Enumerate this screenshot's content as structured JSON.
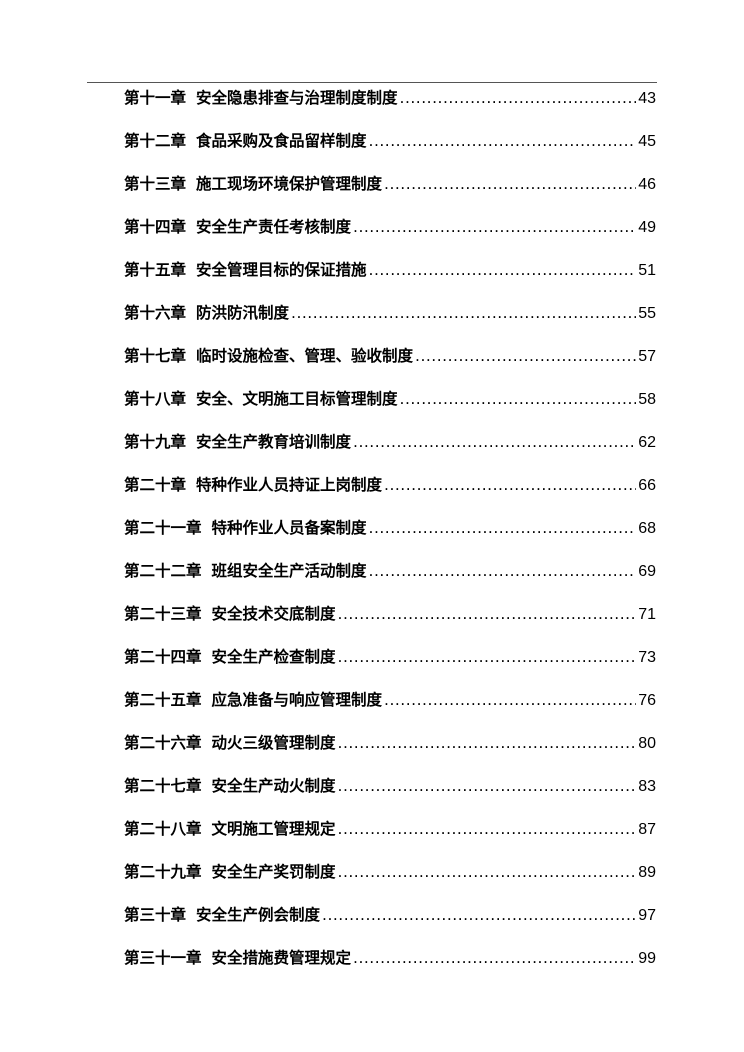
{
  "toc": [
    {
      "chapter": "第十一章",
      "title": "安全隐患排查与治理制度制度",
      "page": "43"
    },
    {
      "chapter": "第十二章",
      "title": "食品采购及食品留样制度",
      "page": "45"
    },
    {
      "chapter": "第十三章",
      "title": "施工现场环境保护管理制度",
      "page": "46"
    },
    {
      "chapter": "第十四章",
      "title": "安全生产责任考核制度",
      "page": "49"
    },
    {
      "chapter": "第十五章",
      "title": "安全管理目标的保证措施",
      "page": "51"
    },
    {
      "chapter": "第十六章",
      "title": "防洪防汛制度",
      "page": "55"
    },
    {
      "chapter": "第十七章",
      "title": "临时设施检查、管理、验收制度",
      "page": "57"
    },
    {
      "chapter": "第十八章",
      "title": "安全、文明施工目标管理制度",
      "page": "58"
    },
    {
      "chapter": "第十九章",
      "title": "安全生产教育培训制度",
      "page": "62"
    },
    {
      "chapter": "第二十章",
      "title": "特种作业人员持证上岗制度",
      "page": "66"
    },
    {
      "chapter": "第二十一章",
      "title": "特种作业人员备案制度",
      "page": "68"
    },
    {
      "chapter": "第二十二章",
      "title": "班组安全生产活动制度",
      "page": "69"
    },
    {
      "chapter": "第二十三章",
      "title": "安全技术交底制度",
      "page": "71"
    },
    {
      "chapter": "第二十四章",
      "title": "安全生产检查制度",
      "page": "73"
    },
    {
      "chapter": "第二十五章",
      "title": "应急准备与响应管理制度",
      "page": "76"
    },
    {
      "chapter": "第二十六章",
      "title": "动火三级管理制度",
      "page": "80"
    },
    {
      "chapter": "第二十七章",
      "title": "安全生产动火制度",
      "page": "83"
    },
    {
      "chapter": "第二十八章",
      "title": "文明施工管理规定",
      "page": "87"
    },
    {
      "chapter": "第二十九章",
      "title": "安全生产奖罚制度",
      "page": "89"
    },
    {
      "chapter": "第三十章",
      "title": "安全生产例会制度",
      "page": "97"
    },
    {
      "chapter": "第三十一章",
      "title": "安全措施费管理规定",
      "page": "99"
    }
  ]
}
